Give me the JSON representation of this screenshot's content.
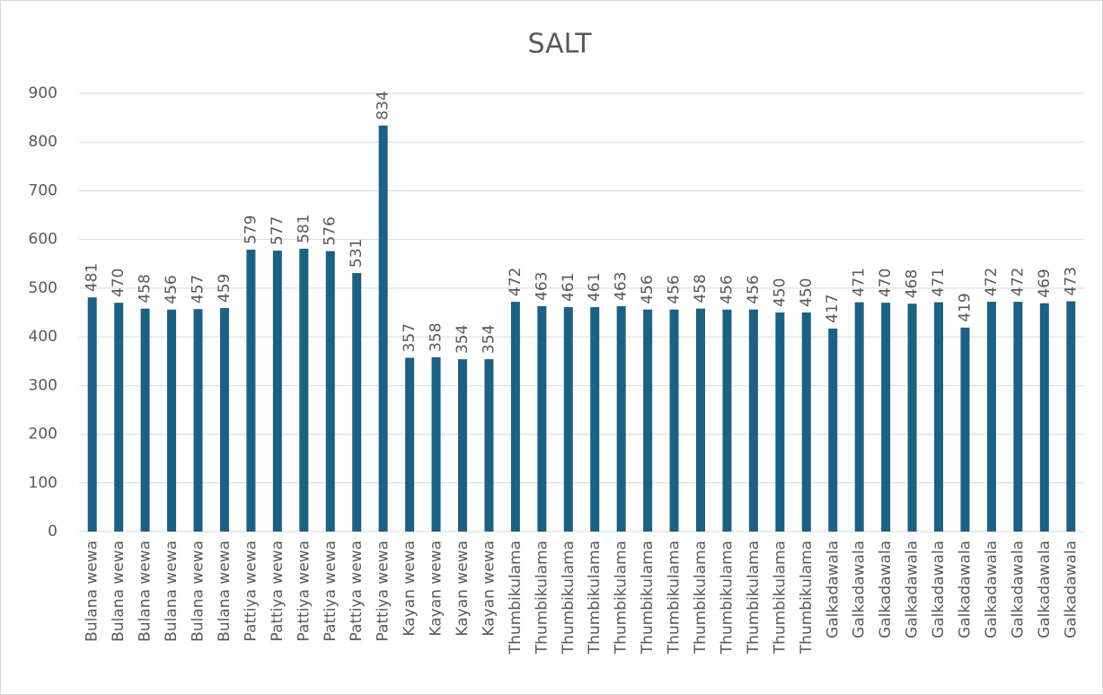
{
  "chart_data": {
    "type": "bar",
    "title": "SALT",
    "categories": [
      "Bulana wewa",
      "Bulana wewa",
      "Bulana wewa",
      "Bulana wewa",
      "Bulana wewa",
      "Bulana wewa",
      "Pattiya wewa",
      "Pattiya wewa",
      "Pattiya wewa",
      "Pattiya wewa",
      "Pattiya wewa",
      "Pattiya wewa",
      "Kayan wewa",
      "Kayan wewa",
      "Kayan wewa",
      "Kayan wewa",
      "Thumbikulama",
      "Thumbikulama",
      "Thumbikulama",
      "Thumbikulama",
      "Thumbikulama",
      "Thumbikulama",
      "Thumbikulama",
      "Thumbikulama",
      "Thumbikulama",
      "Thumbikulama",
      "Thumbikulama",
      "Thumbikulama",
      "Galkadawala",
      "Galkadawala",
      "Galkadawala",
      "Galkadawala",
      "Galkadawala",
      "Galkadawala",
      "Galkadawala",
      "Galkadawala",
      "Galkadawala",
      "Galkadawala"
    ],
    "values": [
      481,
      470,
      458,
      456,
      457,
      459,
      579,
      577,
      581,
      576,
      531,
      834,
      357,
      358,
      354,
      354,
      472,
      463,
      461,
      461,
      463,
      456,
      456,
      458,
      456,
      456,
      450,
      450,
      417,
      471,
      470,
      468,
      471,
      419,
      472,
      472,
      469,
      473
    ],
    "color": "#1b6183",
    "ylim": [
      0,
      900
    ],
    "yticks": [
      0,
      100,
      200,
      300,
      400,
      500,
      600,
      700,
      800,
      900
    ],
    "grid": true
  }
}
